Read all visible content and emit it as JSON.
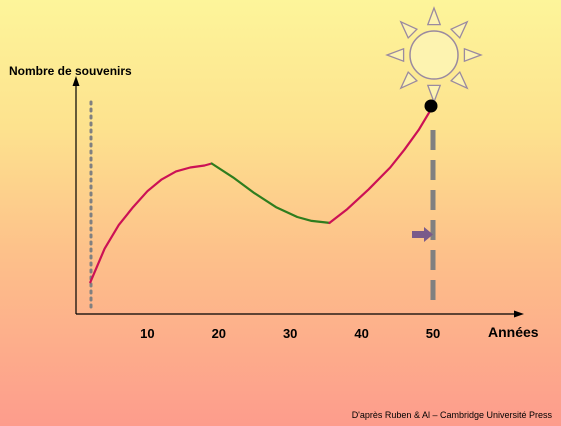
{
  "chart_data": {
    "type": "line",
    "ylabel": "Nombre de  souvenirs",
    "xlabel": "Années",
    "x_ticks": [
      "10",
      "20",
      "30",
      "40",
      "50"
    ],
    "xlim": [
      0,
      55
    ],
    "series": [
      {
        "color": "#cc1155",
        "x": [
          2,
          4,
          6,
          8,
          10,
          12,
          14,
          16,
          18,
          19
        ],
        "y": [
          0.16,
          0.33,
          0.45,
          0.54,
          0.62,
          0.68,
          0.72,
          0.74,
          0.75,
          0.76
        ]
      },
      {
        "color": "#2e7d1e",
        "x": [
          19,
          22,
          25,
          28,
          31,
          33,
          35.5
        ],
        "y": [
          0.76,
          0.69,
          0.61,
          0.54,
          0.49,
          0.47,
          0.46
        ]
      },
      {
        "color": "#cc1155",
        "x": [
          35.5,
          38,
          41,
          44,
          46,
          48,
          50
        ],
        "y": [
          0.46,
          0.53,
          0.63,
          0.74,
          0.83,
          0.93,
          1.05
        ]
      }
    ],
    "grid": false,
    "legend": "none"
  },
  "credit": "D'après Ruben & Al – Cambridge Université Press",
  "colors": {
    "dotted_line": "#808080",
    "dashed_line": "#808080",
    "arrow": "#7a5a8a",
    "sun_stroke": "#9a8aa0",
    "sun_fill": "#fdf3b0",
    "marker": "#000000"
  },
  "icons": [
    "sun-icon",
    "arrow-icon"
  ]
}
